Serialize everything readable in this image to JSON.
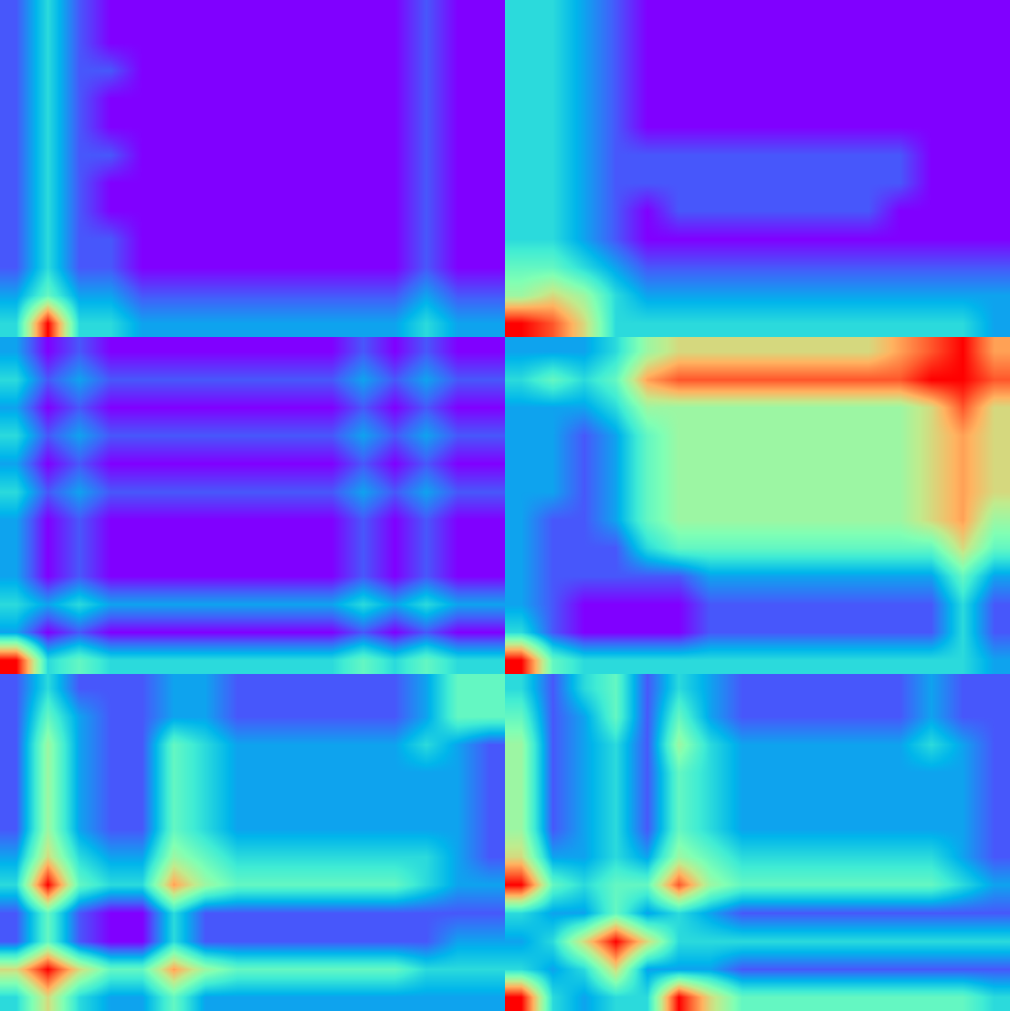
{
  "chart_data": [
    {
      "type": "heatmap",
      "color": "rainbow",
      "zlim": [
        0,
        9
      ],
      "tick_labels": false,
      "cells": [
        [
          1,
          3,
          1,
          0,
          0,
          0,
          0,
          0,
          0,
          0,
          0,
          0,
          0,
          1,
          0,
          0
        ],
        [
          1,
          3,
          1,
          0,
          0,
          0,
          0,
          0,
          0,
          0,
          0,
          0,
          0,
          1,
          0,
          0
        ],
        [
          1,
          3,
          1,
          1,
          0,
          0,
          0,
          0,
          0,
          0,
          0,
          0,
          0,
          1,
          0,
          0
        ],
        [
          1,
          3,
          1,
          0,
          0,
          0,
          0,
          0,
          0,
          0,
          0,
          0,
          0,
          1,
          0,
          0
        ],
        [
          1,
          3,
          1,
          0,
          0,
          0,
          0,
          0,
          0,
          0,
          0,
          0,
          0,
          1,
          0,
          0
        ],
        [
          1,
          3,
          1,
          1,
          0,
          0,
          0,
          0,
          0,
          0,
          0,
          0,
          0,
          1,
          0,
          0
        ],
        [
          1,
          3,
          1,
          0,
          0,
          0,
          0,
          0,
          0,
          0,
          0,
          0,
          0,
          1,
          0,
          0
        ],
        [
          1,
          3,
          1,
          0,
          0,
          0,
          0,
          0,
          0,
          0,
          0,
          0,
          0,
          1,
          0,
          0
        ],
        [
          1,
          3,
          1,
          1,
          0,
          0,
          0,
          0,
          0,
          0,
          0,
          0,
          0,
          1,
          0,
          0
        ],
        [
          1,
          3,
          1,
          1,
          0,
          0,
          0,
          0,
          0,
          0,
          0,
          0,
          0,
          1,
          0,
          0
        ],
        [
          2,
          4,
          2,
          2,
          1,
          1,
          1,
          1,
          1,
          1,
          1,
          1,
          1,
          2,
          1,
          1
        ],
        [
          3,
          9,
          3,
          3,
          2,
          2,
          2,
          2,
          2,
          2,
          2,
          2,
          2,
          3,
          2,
          2
        ]
      ]
    },
    {
      "type": "heatmap",
      "color": "rainbow",
      "zlim": [
        0,
        9
      ],
      "tick_labels": false,
      "cells": [
        [
          3,
          3,
          2,
          1,
          0,
          0,
          0,
          0,
          0,
          0,
          0,
          0,
          0,
          0,
          0,
          0
        ],
        [
          3,
          3,
          2,
          1,
          0,
          0,
          0,
          0,
          0,
          0,
          0,
          0,
          0,
          0,
          0,
          0
        ],
        [
          3,
          3,
          2,
          1,
          0,
          0,
          0,
          0,
          0,
          0,
          0,
          0,
          0,
          0,
          0,
          0
        ],
        [
          3,
          3,
          2,
          1,
          0,
          0,
          0,
          0,
          0,
          0,
          0,
          0,
          0,
          0,
          0,
          0
        ],
        [
          3,
          3,
          2,
          1,
          0,
          0,
          0,
          0,
          0,
          0,
          0,
          0,
          0,
          0,
          0,
          0
        ],
        [
          3,
          3,
          2,
          1,
          1,
          1,
          1,
          1,
          1,
          1,
          1,
          1,
          1,
          0,
          0,
          0
        ],
        [
          3,
          3,
          2,
          1,
          1,
          1,
          1,
          1,
          1,
          1,
          1,
          1,
          1,
          0,
          0,
          0
        ],
        [
          3,
          3,
          2,
          1,
          0,
          1,
          1,
          1,
          1,
          1,
          1,
          1,
          0,
          0,
          0,
          0
        ],
        [
          3,
          3,
          2,
          1,
          0,
          0,
          0,
          0,
          0,
          0,
          0,
          0,
          0,
          0,
          0,
          0
        ],
        [
          4,
          4,
          3,
          2,
          1,
          1,
          1,
          1,
          1,
          1,
          1,
          1,
          1,
          1,
          1,
          1
        ],
        [
          5,
          6,
          5,
          3,
          2,
          2,
          2,
          2,
          2,
          2,
          2,
          2,
          2,
          2,
          2,
          2
        ],
        [
          9,
          8,
          6,
          3,
          3,
          3,
          3,
          3,
          3,
          3,
          3,
          3,
          3,
          3,
          3,
          2
        ]
      ]
    },
    {
      "type": "heatmap",
      "color": "rainbow",
      "zlim": [
        0,
        9
      ],
      "tick_labels": false,
      "cells": [
        [
          2,
          0,
          1,
          0,
          0,
          0,
          0,
          0,
          0,
          0,
          0,
          1,
          0,
          1,
          0,
          0
        ],
        [
          3,
          1,
          2,
          1,
          1,
          1,
          1,
          1,
          1,
          1,
          1,
          2,
          1,
          2,
          1,
          1
        ],
        [
          2,
          0,
          1,
          0,
          0,
          0,
          0,
          0,
          0,
          0,
          0,
          1,
          0,
          1,
          0,
          0
        ],
        [
          3,
          1,
          2,
          1,
          1,
          1,
          1,
          1,
          1,
          1,
          1,
          2,
          1,
          2,
          1,
          1
        ],
        [
          2,
          0,
          1,
          0,
          0,
          0,
          0,
          0,
          0,
          0,
          0,
          1,
          0,
          1,
          0,
          0
        ],
        [
          3,
          1,
          2,
          1,
          1,
          1,
          1,
          1,
          1,
          1,
          1,
          2,
          1,
          2,
          1,
          1
        ],
        [
          2,
          0,
          1,
          0,
          0,
          0,
          0,
          0,
          0,
          0,
          0,
          1,
          0,
          1,
          0,
          0
        ],
        [
          2,
          0,
          1,
          0,
          0,
          0,
          0,
          0,
          0,
          0,
          0,
          1,
          0,
          1,
          0,
          0
        ],
        [
          2,
          0,
          1,
          0,
          0,
          0,
          0,
          0,
          0,
          0,
          0,
          1,
          0,
          1,
          0,
          0
        ],
        [
          3,
          2,
          3,
          2,
          2,
          2,
          2,
          2,
          2,
          2,
          2,
          3,
          2,
          3,
          2,
          2
        ],
        [
          2,
          0,
          1,
          0,
          0,
          0,
          0,
          0,
          0,
          0,
          0,
          1,
          0,
          1,
          0,
          0
        ],
        [
          9,
          3,
          4,
          3,
          3,
          3,
          3,
          3,
          3,
          3,
          3,
          4,
          3,
          4,
          3,
          3
        ]
      ]
    },
    {
      "type": "heatmap",
      "color": "rainbow",
      "zlim": [
        0,
        9
      ],
      "tick_labels": false,
      "cells": [
        [
          2,
          2,
          2,
          3,
          5,
          6,
          6,
          6,
          6,
          6,
          6,
          6,
          7,
          8,
          9,
          7
        ],
        [
          3,
          4,
          3,
          4,
          7,
          8,
          8,
          8,
          8,
          8,
          8,
          8,
          8,
          9,
          9,
          8
        ],
        [
          2,
          2,
          2,
          3,
          5,
          5,
          5,
          5,
          5,
          5,
          5,
          5,
          5,
          6,
          8,
          6
        ],
        [
          2,
          2,
          1,
          2,
          4,
          5,
          5,
          5,
          5,
          5,
          5,
          5,
          5,
          6,
          7,
          6
        ],
        [
          2,
          2,
          1,
          2,
          4,
          5,
          5,
          5,
          5,
          5,
          5,
          5,
          5,
          6,
          7,
          6
        ],
        [
          2,
          2,
          1,
          2,
          4,
          5,
          5,
          5,
          5,
          5,
          5,
          5,
          5,
          6,
          7,
          6
        ],
        [
          2,
          1,
          1,
          2,
          4,
          5,
          5,
          5,
          5,
          5,
          5,
          5,
          5,
          6,
          7,
          5
        ],
        [
          2,
          1,
          1,
          1,
          3,
          4,
          4,
          4,
          4,
          4,
          4,
          4,
          4,
          4,
          6,
          4
        ],
        [
          2,
          1,
          1,
          1,
          1,
          1,
          2,
          2,
          2,
          2,
          2,
          2,
          2,
          2,
          4,
          2
        ],
        [
          2,
          1,
          0,
          0,
          0,
          0,
          1,
          1,
          1,
          1,
          1,
          1,
          1,
          1,
          3,
          1
        ],
        [
          3,
          1,
          0,
          0,
          0,
          0,
          1,
          1,
          1,
          1,
          1,
          1,
          1,
          1,
          3,
          1
        ],
        [
          9,
          4,
          3,
          3,
          3,
          3,
          3,
          3,
          3,
          3,
          3,
          3,
          3,
          3,
          3,
          2
        ]
      ]
    },
    {
      "type": "heatmap",
      "color": "rainbow",
      "zlim": [
        0,
        9
      ],
      "tick_labels": false,
      "cells": [
        [
          1,
          3,
          1,
          1,
          1,
          2,
          2,
          1,
          1,
          1,
          1,
          1,
          1,
          2,
          4,
          4
        ],
        [
          1,
          4,
          2,
          1,
          1,
          2,
          2,
          1,
          1,
          1,
          1,
          1,
          1,
          2,
          4,
          4
        ],
        [
          1,
          5,
          2,
          1,
          1,
          4,
          3,
          2,
          2,
          2,
          2,
          2,
          2,
          3,
          2,
          1
        ],
        [
          1,
          5,
          2,
          1,
          1,
          4,
          3,
          2,
          2,
          2,
          2,
          2,
          2,
          2,
          2,
          1
        ],
        [
          1,
          5,
          2,
          1,
          1,
          4,
          3,
          2,
          2,
          2,
          2,
          2,
          2,
          2,
          2,
          1
        ],
        [
          1,
          5,
          2,
          1,
          1,
          4,
          3,
          2,
          2,
          2,
          2,
          2,
          2,
          2,
          2,
          1
        ],
        [
          2,
          6,
          3,
          2,
          2,
          5,
          4,
          3,
          3,
          3,
          3,
          3,
          3,
          3,
          2,
          1
        ],
        [
          3,
          9,
          4,
          3,
          3,
          7,
          5,
          4,
          4,
          4,
          4,
          4,
          4,
          3,
          2,
          2
        ],
        [
          1,
          4,
          1,
          0,
          0,
          3,
          1,
          1,
          1,
          1,
          1,
          1,
          1,
          1,
          1,
          1
        ],
        [
          1,
          4,
          1,
          0,
          0,
          3,
          1,
          1,
          1,
          1,
          1,
          1,
          1,
          1,
          2,
          2
        ],
        [
          6,
          9,
          6,
          4,
          4,
          7,
          5,
          4,
          4,
          4,
          4,
          4,
          4,
          3,
          3,
          3
        ],
        [
          3,
          6,
          3,
          2,
          2,
          4,
          2,
          2,
          2,
          2,
          2,
          2,
          2,
          2,
          2,
          2
        ]
      ]
    },
    {
      "type": "heatmap",
      "color": "rainbow",
      "zlim": [
        0,
        9
      ],
      "tick_labels": false,
      "cells": [
        [
          3,
          1,
          3,
          4,
          1,
          3,
          2,
          1,
          1,
          1,
          1,
          1,
          1,
          2,
          1,
          1
        ],
        [
          4,
          1,
          2,
          4,
          1,
          4,
          2,
          1,
          1,
          1,
          1,
          1,
          1,
          2,
          1,
          1
        ],
        [
          5,
          1,
          2,
          3,
          1,
          5,
          3,
          2,
          2,
          2,
          2,
          2,
          2,
          3,
          2,
          1
        ],
        [
          5,
          1,
          2,
          3,
          1,
          4,
          3,
          2,
          2,
          2,
          2,
          2,
          2,
          2,
          2,
          1
        ],
        [
          5,
          1,
          2,
          3,
          1,
          4,
          3,
          2,
          2,
          2,
          2,
          2,
          2,
          2,
          2,
          1
        ],
        [
          5,
          1,
          2,
          3,
          1,
          4,
          3,
          2,
          2,
          2,
          2,
          2,
          2,
          2,
          2,
          1
        ],
        [
          6,
          2,
          2,
          3,
          2,
          5,
          4,
          3,
          3,
          3,
          3,
          3,
          3,
          3,
          2,
          1
        ],
        [
          9,
          4,
          3,
          4,
          4,
          8,
          5,
          4,
          4,
          4,
          4,
          4,
          4,
          4,
          3,
          2
        ],
        [
          3,
          2,
          2,
          4,
          2,
          3,
          2,
          1,
          1,
          1,
          1,
          1,
          1,
          1,
          1,
          1
        ],
        [
          2,
          3,
          6,
          9,
          6,
          3,
          3,
          3,
          3,
          3,
          3,
          3,
          3,
          3,
          3,
          3
        ],
        [
          3,
          2,
          3,
          6,
          2,
          2,
          2,
          1,
          1,
          1,
          1,
          1,
          1,
          1,
          1,
          1
        ],
        [
          9,
          3,
          2,
          3,
          3,
          9,
          6,
          4,
          4,
          4,
          4,
          4,
          4,
          4,
          4,
          3
        ]
      ]
    }
  ]
}
